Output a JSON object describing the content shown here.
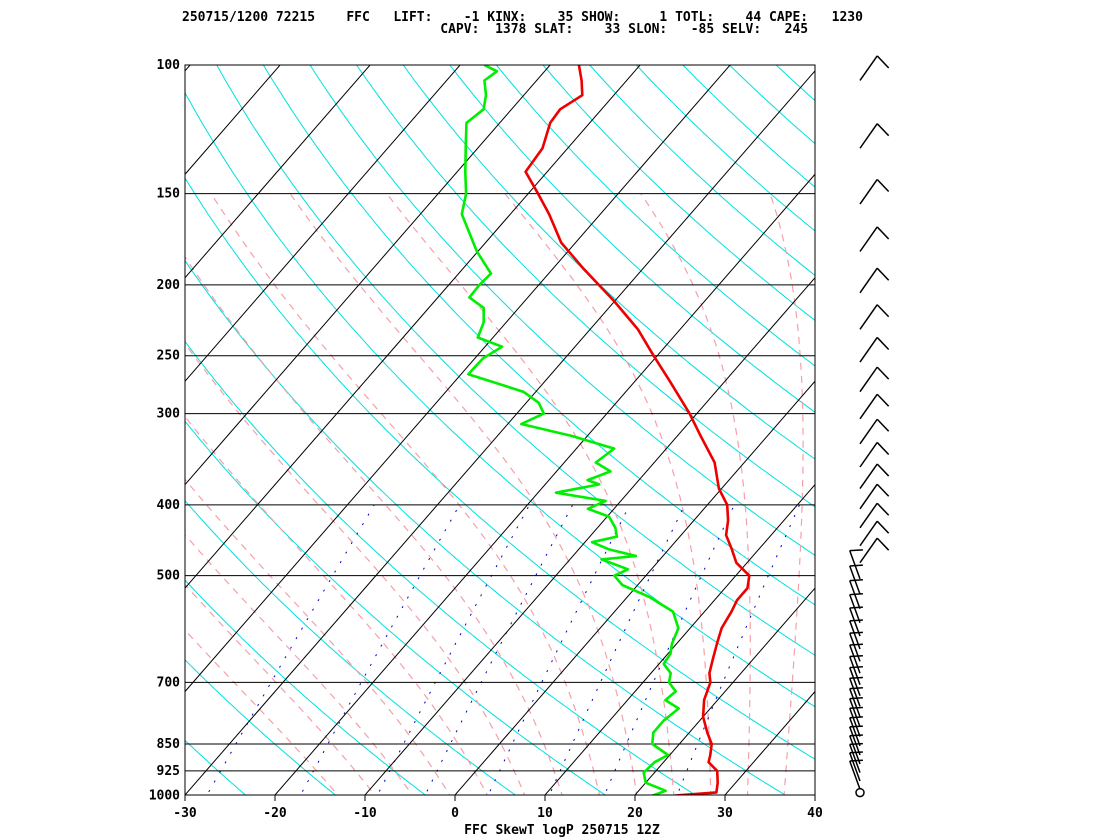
{
  "header": {
    "line1": "250715/1200 72215    FFC   LIFT:    -1 KINX:    35 SHOW:     1 TOTL:    44 CAPE:   1230",
    "line2": "                                 CAPV:  1378 SLAT:    33 SLON:   -85 SELV:   245"
  },
  "chart_data": {
    "type": "line",
    "title": "FFC SkewT logP 250715 12Z",
    "xlabel": "",
    "ylabel": "",
    "x_axis": {
      "ticks": [
        -30,
        -20,
        -10,
        0,
        10,
        20,
        30,
        40
      ],
      "xlim": [
        -30,
        40
      ]
    },
    "y_axis": {
      "scale": "log",
      "ticks": [
        100,
        150,
        200,
        250,
        300,
        400,
        500,
        700,
        850,
        925,
        1000
      ],
      "ylim": [
        1000,
        100
      ]
    },
    "series": [
      {
        "color": "#ee0000",
        "points": [
          [
            1000,
            24.5
          ],
          [
            990,
            28.8
          ],
          [
            960,
            28
          ],
          [
            925,
            26.8
          ],
          [
            900,
            25
          ],
          [
            880,
            24.5
          ],
          [
            850,
            23.6
          ],
          [
            820,
            22
          ],
          [
            780,
            20
          ],
          [
            740,
            18.5
          ],
          [
            700,
            17.5
          ],
          [
            680,
            16.5
          ],
          [
            650,
            15.5
          ],
          [
            620,
            14.5
          ],
          [
            590,
            13.5
          ],
          [
            560,
            13
          ],
          [
            540,
            12.5
          ],
          [
            520,
            12.5
          ],
          [
            500,
            11.5
          ],
          [
            480,
            8.8
          ],
          [
            460,
            7
          ],
          [
            440,
            5
          ],
          [
            420,
            3.8
          ],
          [
            400,
            2.2
          ],
          [
            380,
            -0.3
          ],
          [
            350,
            -3.3
          ],
          [
            320,
            -7.7
          ],
          [
            300,
            -10.8
          ],
          [
            270,
            -16.3
          ],
          [
            250,
            -20.4
          ],
          [
            230,
            -24.7
          ],
          [
            210,
            -30.2
          ],
          [
            190,
            -36.6
          ],
          [
            175,
            -41.6
          ],
          [
            160,
            -45.7
          ],
          [
            150,
            -48.9
          ],
          [
            140,
            -52.4
          ],
          [
            130,
            -52.8
          ],
          [
            120,
            -54.4
          ],
          [
            115,
            -54.6
          ],
          [
            110,
            -53.5
          ],
          [
            105,
            -55
          ],
          [
            100,
            -56.8
          ]
        ]
      },
      {
        "color": "#00ee00",
        "points": [
          [
            1000,
            22
          ],
          [
            985,
            23
          ],
          [
            960,
            20
          ],
          [
            930,
            18.8
          ],
          [
            900,
            19
          ],
          [
            880,
            19.8
          ],
          [
            850,
            17
          ],
          [
            820,
            16
          ],
          [
            790,
            16
          ],
          [
            760,
            16.5
          ],
          [
            740,
            14.2
          ],
          [
            720,
            14.5
          ],
          [
            700,
            12.9
          ],
          [
            680,
            12.2
          ],
          [
            660,
            10.5
          ],
          [
            640,
            10.3
          ],
          [
            620,
            9.5
          ],
          [
            590,
            8.7
          ],
          [
            560,
            6.5
          ],
          [
            535,
            2.5
          ],
          [
            515,
            -1.7
          ],
          [
            500,
            -3.5
          ],
          [
            490,
            -2.6
          ],
          [
            475,
            -6.5
          ],
          [
            470,
            -3
          ],
          [
            460,
            -6.7
          ],
          [
            450,
            -9.2
          ],
          [
            442,
            -7
          ],
          [
            430,
            -8
          ],
          [
            415,
            -9.8
          ],
          [
            405,
            -12.9
          ],
          [
            395,
            -11.7
          ],
          [
            385,
            -18
          ],
          [
            375,
            -14
          ],
          [
            370,
            -15.7
          ],
          [
            360,
            -14
          ],
          [
            350,
            -16.5
          ],
          [
            335,
            -15.8
          ],
          [
            322,
            -21.7
          ],
          [
            310,
            -28.5
          ],
          [
            300,
            -27
          ],
          [
            290,
            -28.6
          ],
          [
            280,
            -31.4
          ],
          [
            265,
            -39.2
          ],
          [
            252,
            -39.1
          ],
          [
            243,
            -38.1
          ],
          [
            236,
            -41.7
          ],
          [
            225,
            -42.5
          ],
          [
            215,
            -43.9
          ],
          [
            208,
            -46.5
          ],
          [
            200,
            -46.6
          ],
          [
            193,
            -46.4
          ],
          [
            180,
            -50.1
          ],
          [
            160,
            -55.4
          ],
          [
            150,
            -56.9
          ],
          [
            140,
            -59.1
          ],
          [
            128,
            -61.8
          ],
          [
            120,
            -63.7
          ],
          [
            115,
            -63.1
          ],
          [
            110,
            -64.2
          ],
          [
            105,
            -65.8
          ],
          [
            102,
            -65.3
          ],
          [
            100,
            -67.3
          ]
        ]
      }
    ],
    "grid": true,
    "wind_barbs": true,
    "background_colors": {
      "isobar": "#000000",
      "isotherm": "#000000",
      "dry_adiabat": "#00e0e0",
      "moist_adiabat": "#f4a0a8",
      "mixing_ratio": "#0000cc",
      "temperature": "#ee0000",
      "dewpoint": "#00ee00",
      "wind": "#000000"
    }
  }
}
